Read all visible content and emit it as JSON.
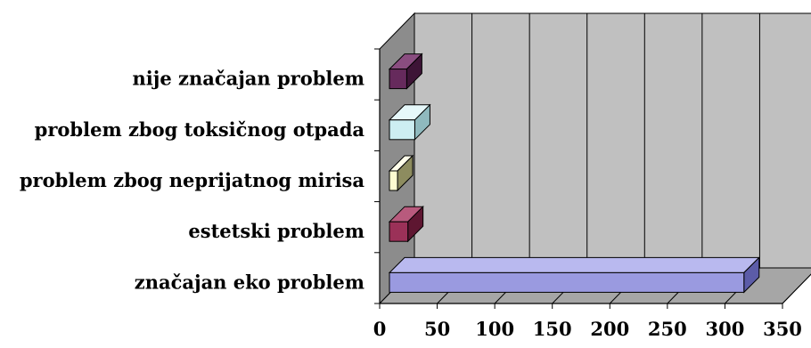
{
  "chart_data": {
    "type": "bar",
    "orientation": "horizontal",
    "three_d": true,
    "categories": [
      "nije značajan problem",
      "problem zbog toksičnog otpada",
      "problem zbog neprijatnog mirisa",
      "estetski problem",
      "značajan eko problem"
    ],
    "values": [
      15,
      22,
      7,
      16,
      308
    ],
    "xlim": [
      0,
      350
    ],
    "xticks": [
      "0",
      "50",
      "100",
      "150",
      "200",
      "250",
      "300",
      "350"
    ],
    "grid": true,
    "legend": "none",
    "colors": {
      "wall": "#c0c0c0",
      "floor": "#a6a6a6",
      "bars": [
        {
          "front": "#662a5c",
          "top": "#8a4d80",
          "side": "#3d1436"
        },
        {
          "front": "#cdeef2",
          "top": "#e6f8fa",
          "side": "#8fb9be"
        },
        {
          "front": "#fdfbd0",
          "top": "#fffeea",
          "side": "#8d8c5f"
        },
        {
          "front": "#9b3158",
          "top": "#b85a7d",
          "side": "#5e1631"
        },
        {
          "front": "#9a9ae0",
          "top": "#b9b9ef",
          "side": "#5c5ca8"
        }
      ]
    }
  }
}
